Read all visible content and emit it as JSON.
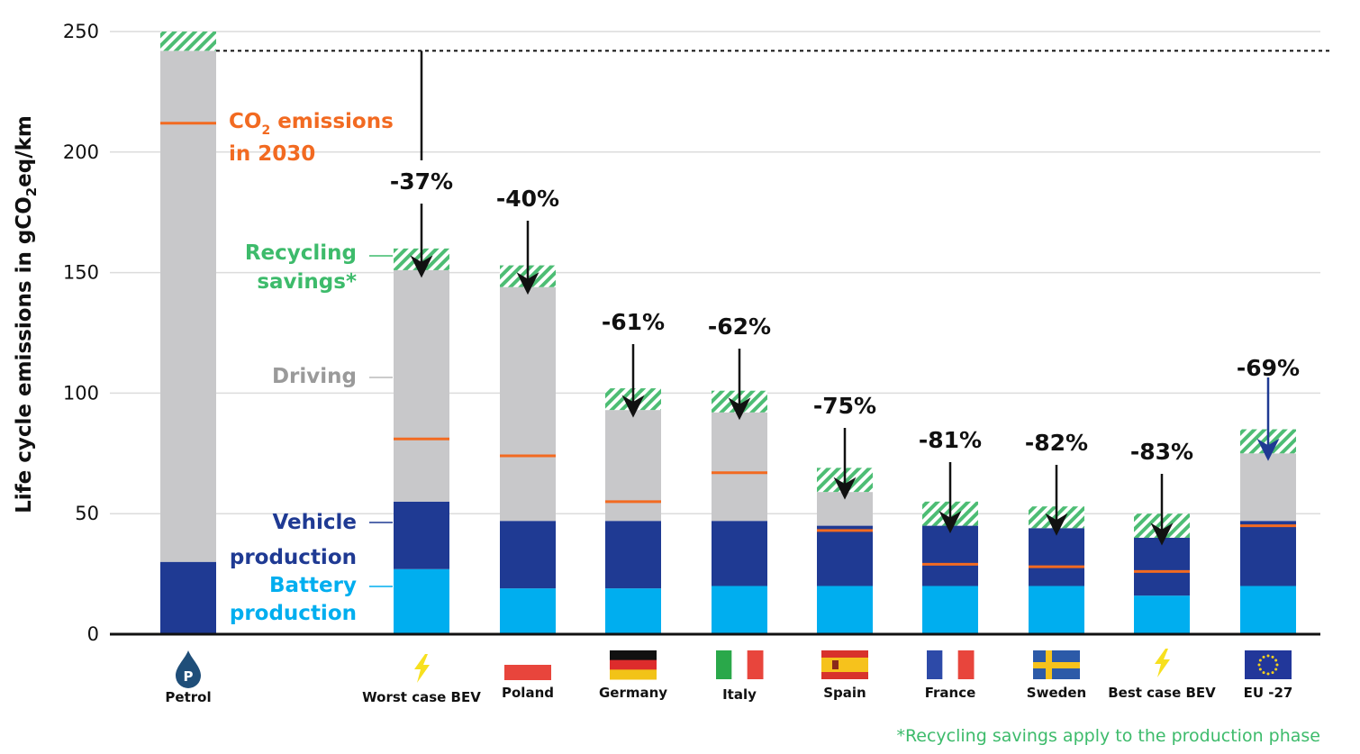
{
  "chart_data": {
    "type": "bar",
    "stacked": true,
    "ylabel": "Life cycle emissions in gCO2eq/km",
    "ylim": [
      0,
      250
    ],
    "yticks": [
      0,
      50,
      100,
      150,
      200,
      250
    ],
    "grid": true,
    "categories": [
      "Petrol",
      "Worst case BEV",
      "Poland",
      "Germany",
      "Italy",
      "Spain",
      "France",
      "Sweden",
      "Best case BEV",
      "EU -27"
    ],
    "icons": [
      "petrol-drop-icon",
      "lightning-icon",
      "flag-poland-icon",
      "flag-germany-icon",
      "flag-italy-icon",
      "flag-spain-icon",
      "flag-france-icon",
      "flag-sweden-icon",
      "lightning-icon",
      "flag-eu-icon"
    ],
    "series": [
      {
        "name": "Battery production",
        "color": "#00aeef",
        "values": [
          0,
          27,
          19,
          19,
          20,
          20,
          20,
          20,
          16,
          20
        ]
      },
      {
        "name": "Vehicle production",
        "color": "#1f3a93",
        "values": [
          30,
          28,
          28,
          28,
          27,
          25,
          25,
          24,
          24,
          27
        ]
      },
      {
        "name": "Driving",
        "color": "#c8c8ca",
        "values": [
          212,
          96,
          97,
          46,
          45,
          14,
          0,
          0,
          0,
          28
        ]
      },
      {
        "name": "Recycling savings*",
        "color": "#4dbd74",
        "values": [
          8,
          9,
          9,
          9,
          9,
          10,
          10,
          9,
          10,
          10
        ]
      }
    ],
    "co2_2030_line": [
      212,
      81,
      74,
      55,
      67,
      43,
      29,
      28,
      26,
      45
    ],
    "reference_line": 242,
    "percent_labels": [
      "",
      "-37%",
      "-40%",
      "-61%",
      "-62%",
      "-75%",
      "-81%",
      "-82%",
      "-83%",
      "-69%"
    ],
    "annotations": {
      "co2_line1": "CO",
      "co2_sub": "2",
      "co2_line1_rest": " emissions",
      "co2_line2": "in 2030",
      "recycling_1": "Recycling",
      "recycling_2": "savings*",
      "driving": "Driving",
      "vehicle_1": "Vehicle",
      "vehicle_2": "production",
      "battery_1": "Battery",
      "battery_2": "production"
    },
    "footnote": "*Recycling savings apply to the production phase",
    "colors": {
      "co2_line": "#f26a21",
      "recycling_text": "#3dbb6b",
      "driving_text": "#9a9a9a",
      "vehicle_text": "#1f3a93",
      "battery_text": "#00aeef",
      "eu_arrow": "#1f3a93"
    }
  }
}
